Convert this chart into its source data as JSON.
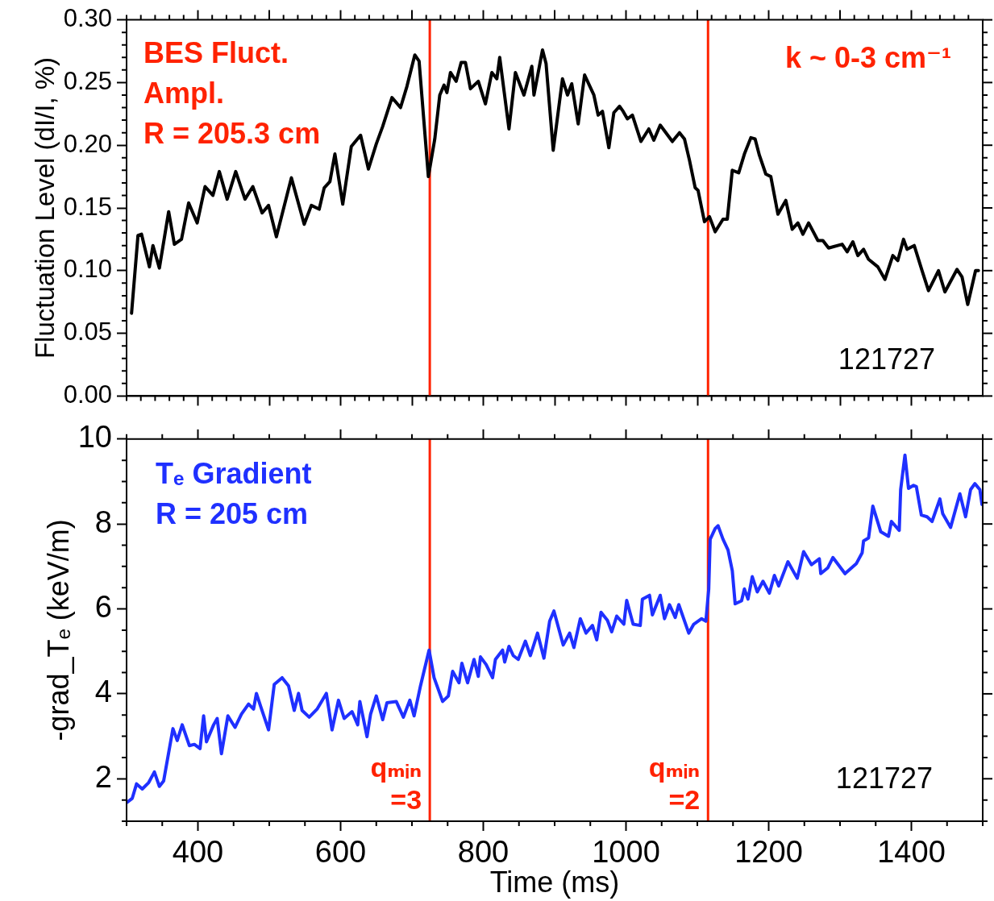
{
  "chart_data": [
    {
      "type": "line",
      "ylabel": "Fluctuation Level (dI/I, %)",
      "color": "#000000",
      "tick_labels": "y",
      "xlim": [
        300,
        1500
      ],
      "xticks": [
        400,
        500,
        600,
        700,
        800,
        900,
        1000,
        1100,
        1200,
        1300,
        1400
      ],
      "ylim": [
        0,
        0.3
      ],
      "yticks": [
        {
          "value": 0,
          "label": "0.00"
        },
        {
          "value": 0.05,
          "label": "0.05"
        },
        {
          "value": 0.1,
          "label": "0.10"
        },
        {
          "value": 0.15,
          "label": "0.15"
        },
        {
          "value": 0.2,
          "label": "0.20"
        },
        {
          "value": 0.25,
          "label": "0.25"
        },
        {
          "value": 0.3,
          "label": "0.30"
        }
      ],
      "x": [
        307,
        316,
        321,
        332,
        337,
        346,
        359,
        367,
        377,
        387,
        399,
        410,
        421,
        430,
        441,
        453,
        466,
        477,
        490,
        499,
        510,
        531,
        549,
        559,
        570,
        577,
        585,
        592,
        603,
        615,
        628,
        639,
        650,
        659,
        672,
        684,
        693,
        704,
        710,
        723,
        732,
        739,
        745,
        749,
        754,
        762,
        769,
        775,
        782,
        793,
        803,
        812,
        819,
        823,
        836,
        845,
        857,
        868,
        871,
        883,
        888,
        898,
        911,
        918,
        924,
        933,
        942,
        955,
        961,
        967,
        976,
        983,
        991,
        996,
        1002,
        1009,
        1021,
        1032,
        1039,
        1048,
        1065,
        1075,
        1082,
        1089,
        1097,
        1101,
        1110,
        1117,
        1125,
        1136,
        1142,
        1149,
        1158,
        1166,
        1175,
        1181,
        1187,
        1196,
        1203,
        1213,
        1224,
        1233,
        1241,
        1248,
        1256,
        1269,
        1276,
        1284,
        1303,
        1310,
        1318,
        1325,
        1333,
        1340,
        1353,
        1363,
        1374,
        1381,
        1389,
        1394,
        1404,
        1415,
        1424,
        1438,
        1447,
        1464,
        1471,
        1479,
        1490,
        1494
      ],
      "values": [
        0.066,
        0.128,
        0.129,
        0.103,
        0.12,
        0.102,
        0.147,
        0.121,
        0.125,
        0.154,
        0.138,
        0.167,
        0.16,
        0.179,
        0.157,
        0.179,
        0.157,
        0.167,
        0.146,
        0.152,
        0.127,
        0.174,
        0.137,
        0.152,
        0.149,
        0.166,
        0.171,
        0.193,
        0.153,
        0.199,
        0.208,
        0.181,
        0.201,
        0.215,
        0.238,
        0.23,
        0.247,
        0.272,
        0.267,
        0.175,
        0.205,
        0.24,
        0.248,
        0.242,
        0.258,
        0.251,
        0.266,
        0.266,
        0.245,
        0.251,
        0.233,
        0.258,
        0.253,
        0.27,
        0.213,
        0.258,
        0.24,
        0.263,
        0.24,
        0.276,
        0.265,
        0.196,
        0.253,
        0.24,
        0.249,
        0.217,
        0.256,
        0.24,
        0.224,
        0.227,
        0.198,
        0.226,
        0.231,
        0.227,
        0.221,
        0.224,
        0.203,
        0.213,
        0.204,
        0.216,
        0.203,
        0.21,
        0.205,
        0.188,
        0.166,
        0.164,
        0.139,
        0.143,
        0.131,
        0.141,
        0.141,
        0.18,
        0.178,
        0.193,
        0.206,
        0.205,
        0.192,
        0.177,
        0.175,
        0.145,
        0.156,
        0.133,
        0.138,
        0.129,
        0.138,
        0.124,
        0.124,
        0.118,
        0.121,
        0.115,
        0.123,
        0.112,
        0.117,
        0.109,
        0.103,
        0.093,
        0.112,
        0.108,
        0.125,
        0.117,
        0.12,
        0.1,
        0.084,
        0.1,
        0.083,
        0.101,
        0.095,
        0.073,
        0.1,
        0.1
      ],
      "ref_lines": [
        {
          "axis": "x",
          "value": 725,
          "color": "#ff2200"
        },
        {
          "axis": "x",
          "value": 1115,
          "color": "#ff2200"
        }
      ],
      "annotations": [
        "BES Fluct.\nAmpl.\nR = 205.3 cm",
        "k ~ 0-3 cm⁻¹",
        "121727"
      ]
    },
    {
      "type": "line",
      "xlabel": "Time (ms)",
      "ylabel": "-grad_Tₑ (keV/m)",
      "color": "#1f30ff",
      "xlim": [
        300,
        1500
      ],
      "xticks": [
        400,
        600,
        800,
        1000,
        1200,
        1400
      ],
      "ylim": [
        1,
        10
      ],
      "yticks": [
        2,
        4,
        6,
        8,
        10
      ],
      "x": [
        301,
        308,
        314,
        322,
        331,
        339,
        346,
        352,
        365,
        371,
        378,
        388,
        395,
        403,
        408,
        412,
        422,
        427,
        433,
        442,
        452,
        461,
        471,
        478,
        482,
        488,
        499,
        507,
        518,
        527,
        535,
        541,
        546,
        556,
        567,
        580,
        588,
        597,
        605,
        616,
        624,
        627,
        637,
        642,
        650,
        659,
        665,
        678,
        688,
        697,
        703,
        712,
        724,
        731,
        743,
        751,
        757,
        766,
        770,
        778,
        787,
        793,
        796,
        804,
        813,
        817,
        827,
        830,
        836,
        842,
        849,
        859,
        866,
        876,
        885,
        893,
        899,
        912,
        921,
        927,
        936,
        944,
        953,
        959,
        965,
        974,
        980,
        987,
        997,
        1001,
        1010,
        1020,
        1023,
        1033,
        1037,
        1048,
        1054,
        1061,
        1069,
        1074,
        1088,
        1095,
        1106,
        1112,
        1116,
        1118,
        1125,
        1129,
        1136,
        1143,
        1149,
        1153,
        1162,
        1166,
        1171,
        1177,
        1184,
        1192,
        1201,
        1208,
        1214,
        1227,
        1240,
        1249,
        1260,
        1271,
        1273,
        1283,
        1290,
        1307,
        1323,
        1331,
        1333,
        1340,
        1346,
        1357,
        1368,
        1372,
        1383,
        1385,
        1391,
        1396,
        1403,
        1407,
        1414,
        1422,
        1429,
        1440,
        1444,
        1455,
        1468,
        1476,
        1483,
        1489,
        1496,
        1499
      ],
      "values": [
        1.45,
        1.54,
        1.88,
        1.76,
        1.91,
        2.16,
        1.82,
        1.95,
        3.18,
        2.9,
        3.27,
        2.78,
        2.81,
        2.71,
        3.48,
        2.87,
        3.27,
        3.42,
        2.59,
        3.48,
        3.21,
        3.52,
        3.76,
        3.64,
        4.01,
        3.7,
        3.15,
        4.22,
        4.38,
        4.19,
        3.61,
        4.01,
        3.61,
        3.45,
        3.64,
        4.01,
        3.15,
        3.85,
        3.42,
        3.58,
        3.27,
        3.82,
        2.99,
        3.52,
        3.95,
        3.39,
        3.79,
        3.82,
        3.45,
        3.85,
        3.48,
        4.19,
        5.03,
        4.38,
        3.82,
        3.95,
        4.53,
        4.26,
        4.72,
        4.26,
        4.81,
        4.41,
        4.87,
        4.69,
        4.38,
        4.81,
        5.03,
        4.75,
        5.12,
        4.9,
        4.81,
        5.24,
        4.9,
        5.43,
        4.84,
        5.71,
        5.95,
        5.15,
        5.43,
        5.09,
        5.77,
        5.43,
        5.61,
        5.27,
        5.92,
        5.73,
        5.46,
        5.83,
        5.64,
        6.2,
        5.64,
        5.61,
        6.23,
        6.32,
        5.86,
        6.32,
        5.77,
        6.1,
        5.8,
        6.1,
        5.43,
        5.64,
        5.77,
        5.71,
        6.47,
        7.64,
        7.89,
        7.96,
        7.64,
        7.39,
        6.9,
        6.12,
        6.19,
        6.47,
        6.23,
        6.76,
        6.4,
        6.65,
        6.37,
        6.79,
        6.54,
        7.11,
        6.72,
        7.35,
        7.04,
        7.18,
        6.83,
        6.97,
        7.21,
        6.83,
        7.07,
        7.32,
        7.6,
        7.67,
        8.42,
        7.82,
        7.71,
        8.06,
        7.85,
        8.81,
        9.62,
        8.84,
        8.91,
        8.88,
        8.21,
        8.17,
        8.06,
        8.59,
        8.24,
        7.92,
        8.71,
        8.17,
        8.81,
        8.95,
        8.81,
        8.46
      ],
      "ref_lines": [
        {
          "axis": "x",
          "value": 725,
          "color": "#ff2200"
        },
        {
          "axis": "x",
          "value": 1115,
          "color": "#ff2200"
        }
      ],
      "annotations": [
        "Tₑ Gradient\nR = 205 cm",
        "121727",
        "qₘᵢₙ\n=3",
        "qₘᵢₙ\n=2"
      ]
    }
  ]
}
